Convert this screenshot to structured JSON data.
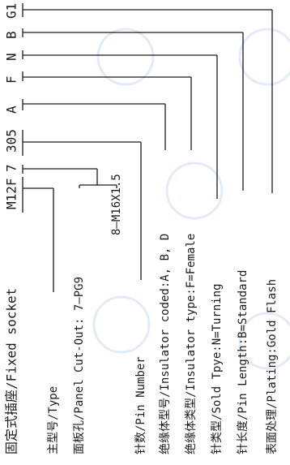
{
  "title_label": "固定式插座/Fixed socket",
  "code_parts": [
    "M12F",
    "7",
    "305",
    "A",
    "F",
    "N",
    "B",
    "G1"
  ],
  "legend_labels": [
    "主型号/Type",
    "面板孔/Panel Cut-Out: 7—PG9",
    "8—M16X1.5",
    "针数/Pin Number",
    "绝缘体型号/Insulator coded:A, B, D",
    "绝缘体类型/Insulator type:F=Female",
    "针类型/Sold Tpye:N=Turning",
    "针长度/Pin Length:B=Standard",
    "表面处理/Plating:Gold Flash"
  ],
  "colors": {
    "ink": "#1a1a1a",
    "watermark": "#e3ecf6"
  }
}
